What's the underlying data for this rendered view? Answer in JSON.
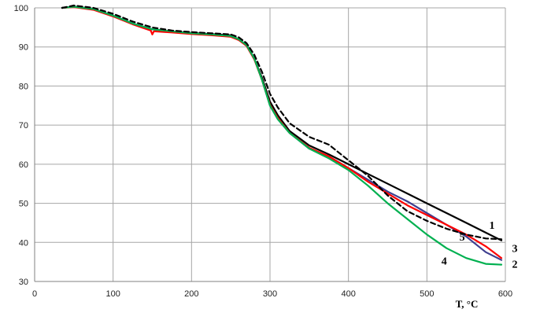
{
  "chart_data": {
    "type": "line",
    "xlabel": "T, °C",
    "ylabel": "",
    "xlim": [
      0,
      600
    ],
    "ylim": [
      30,
      100
    ],
    "x_ticks": [
      0,
      100,
      200,
      300,
      400,
      500,
      600
    ],
    "y_ticks": [
      30,
      40,
      50,
      60,
      70,
      80,
      90,
      100
    ],
    "grid": true,
    "series": [
      {
        "name": "1",
        "color": "#000000",
        "dash": "solid",
        "points": [
          [
            35,
            100
          ],
          [
            50,
            100.3
          ],
          [
            75,
            99.7
          ],
          [
            100,
            98
          ],
          [
            125,
            96
          ],
          [
            150,
            94.5
          ],
          [
            175,
            94
          ],
          [
            200,
            93.6
          ],
          [
            225,
            93.3
          ],
          [
            250,
            93
          ],
          [
            260,
            92
          ],
          [
            270,
            90.5
          ],
          [
            280,
            87
          ],
          [
            290,
            82
          ],
          [
            300,
            76
          ],
          [
            310,
            72.5
          ],
          [
            325,
            68.5
          ],
          [
            350,
            64.8
          ],
          [
            375,
            62.5
          ],
          [
            400,
            60
          ],
          [
            425,
            57.5
          ],
          [
            450,
            55
          ],
          [
            475,
            52.5
          ],
          [
            500,
            50
          ],
          [
            525,
            47.5
          ],
          [
            550,
            45
          ],
          [
            575,
            42.5
          ],
          [
            595,
            40.5
          ]
        ]
      },
      {
        "name": "2",
        "color": "#3f3f8f",
        "dash": "solid",
        "points": [
          [
            35,
            100
          ],
          [
            50,
            100.3
          ],
          [
            75,
            99.7
          ],
          [
            100,
            98
          ],
          [
            125,
            96
          ],
          [
            150,
            94.5
          ],
          [
            175,
            94
          ],
          [
            200,
            93.5
          ],
          [
            225,
            93.2
          ],
          [
            250,
            92.8
          ],
          [
            260,
            92
          ],
          [
            270,
            90.5
          ],
          [
            280,
            87
          ],
          [
            290,
            81.5
          ],
          [
            300,
            75
          ],
          [
            310,
            71.5
          ],
          [
            325,
            68
          ],
          [
            350,
            64
          ],
          [
            375,
            62
          ],
          [
            400,
            59
          ],
          [
            425,
            56
          ],
          [
            450,
            53
          ],
          [
            475,
            50.5
          ],
          [
            500,
            47.5
          ],
          [
            525,
            44.5
          ],
          [
            550,
            41.5
          ],
          [
            575,
            37.5
          ],
          [
            595,
            35.5
          ]
        ]
      },
      {
        "name": "3",
        "color": "#ff0000",
        "dash": "solid",
        "points": [
          [
            35,
            100
          ],
          [
            50,
            100.2
          ],
          [
            75,
            99.5
          ],
          [
            100,
            97.8
          ],
          [
            125,
            95.8
          ],
          [
            148,
            94.2
          ],
          [
            150,
            93.2
          ],
          [
            152,
            94
          ],
          [
            175,
            93.7
          ],
          [
            200,
            93.3
          ],
          [
            225,
            93
          ],
          [
            250,
            92.6
          ],
          [
            260,
            91.8
          ],
          [
            270,
            90.3
          ],
          [
            280,
            86.8
          ],
          [
            290,
            81.5
          ],
          [
            300,
            75.2
          ],
          [
            310,
            71.8
          ],
          [
            325,
            68
          ],
          [
            350,
            64.2
          ],
          [
            375,
            62
          ],
          [
            400,
            59
          ],
          [
            425,
            55.5
          ],
          [
            450,
            52.5
          ],
          [
            475,
            49.5
          ],
          [
            500,
            47
          ],
          [
            525,
            44.5
          ],
          [
            550,
            42
          ],
          [
            575,
            39
          ],
          [
            595,
            36
          ]
        ]
      },
      {
        "name": "4",
        "color": "#00b050",
        "dash": "solid",
        "points": [
          [
            35,
            100
          ],
          [
            50,
            100.3
          ],
          [
            75,
            99.7
          ],
          [
            100,
            98
          ],
          [
            125,
            96
          ],
          [
            150,
            94.5
          ],
          [
            175,
            94
          ],
          [
            200,
            93.5
          ],
          [
            225,
            93.2
          ],
          [
            250,
            92.8
          ],
          [
            260,
            92
          ],
          [
            270,
            90.5
          ],
          [
            280,
            87
          ],
          [
            290,
            81.5
          ],
          [
            300,
            75
          ],
          [
            310,
            71.5
          ],
          [
            325,
            68
          ],
          [
            350,
            64
          ],
          [
            375,
            61.5
          ],
          [
            400,
            58.5
          ],
          [
            425,
            54.5
          ],
          [
            450,
            50
          ],
          [
            475,
            46
          ],
          [
            500,
            42
          ],
          [
            525,
            38.5
          ],
          [
            550,
            36
          ],
          [
            575,
            34.5
          ],
          [
            595,
            34.3
          ]
        ]
      },
      {
        "name": "5",
        "color": "#000000",
        "dash": "dashed",
        "points": [
          [
            35,
            100
          ],
          [
            50,
            100.6
          ],
          [
            75,
            100
          ],
          [
            100,
            98.5
          ],
          [
            125,
            96.5
          ],
          [
            150,
            95
          ],
          [
            175,
            94.2
          ],
          [
            200,
            93.8
          ],
          [
            225,
            93.5
          ],
          [
            250,
            93.2
          ],
          [
            260,
            92.5
          ],
          [
            270,
            91
          ],
          [
            280,
            88
          ],
          [
            290,
            83.5
          ],
          [
            300,
            78
          ],
          [
            310,
            74.5
          ],
          [
            325,
            70.5
          ],
          [
            350,
            67
          ],
          [
            375,
            65
          ],
          [
            400,
            61
          ],
          [
            425,
            57
          ],
          [
            450,
            52
          ],
          [
            475,
            48
          ],
          [
            500,
            45.5
          ],
          [
            525,
            43.5
          ],
          [
            550,
            42
          ],
          [
            575,
            41
          ],
          [
            595,
            40.8
          ]
        ]
      }
    ],
    "series_label_positions": [
      {
        "name": "1",
        "x": 583,
        "y": 43.5
      },
      {
        "name": "5",
        "x": 545,
        "y": 40.5
      },
      {
        "name": "3",
        "x": 612,
        "y": 37.5
      },
      {
        "name": "2",
        "x": 612,
        "y": 33.5
      },
      {
        "name": "4",
        "x": 522,
        "y": 34.3
      }
    ]
  }
}
